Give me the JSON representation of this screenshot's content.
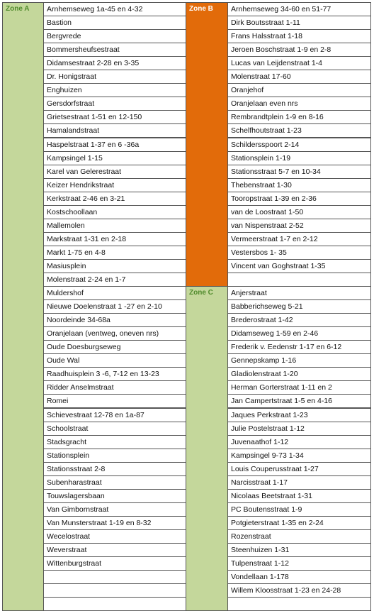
{
  "left": {
    "zone": "Zone A",
    "streets": [
      "Arnhemseweg 1a-45 en 4-32",
      "Bastion",
      "Bergvrede",
      "Bommersheufsestraat",
      "Didamsestraat 2-28 en 3-35",
      "Dr. Honigstraat",
      "Enghuizen",
      "Gersdorfstraat",
      "Grietsestraat 1-51 en 12-150",
      "Hamalandstraat",
      "Haspelstraat 1-37 en 6 -36a",
      "Kampsingel 1-15",
      "Karel van Gelerestraat",
      "Keizer Hendrikstraat",
      "Kerkstraat 2-46 en 3-21",
      "Kostschoollaan",
      "Mallemolen",
      "Markstraat 1-31 en 2-18",
      "Markt 1-75 en 4-8",
      "Masiusplein",
      "Molenstraat 2-24 en 1-7",
      "Muldershof",
      "Nieuwe Doelenstraat 1 -27 en 2-10",
      "Noordeinde 34-68a",
      "Oranjelaan (ventweg, oneven nrs)",
      "Oude Doesburgseweg",
      "Oude Wal",
      "Raadhuisplein 3 -6, 7-12 en 13-23",
      "Ridder Anselmstraat",
      "Romei",
      "Schievestraat 12-78 en 1a-87",
      "Schoolstraat",
      "Stadsgracht",
      "Stationsplein",
      "Stationsstraat 2-8",
      "Subenharastraat",
      "Touwslagersbaan",
      "Van Gimbornstraat",
      "Van Munsterstraat 1-19 en 8-32",
      "Wecelostraat",
      "Weverstraat",
      "Wittenburgstraat"
    ]
  },
  "right": [
    {
      "zone": "Zone B",
      "streets": [
        "Arnhemseweg 34-60 en 51-77",
        "Dirk Boutsstraat 1-11",
        "Frans Halsstraat 1-18",
        "Jeroen Boschstraat 1-9 en 2-8",
        "Lucas van Leijdenstraat 1-4",
        "Molenstraat 17-60",
        "Oranjehof",
        "Oranjelaan even nrs",
        "Rembrandtplein 1-9 en 8-16",
        "Schelfhoutstraat 1-23",
        "Schildersspoort 2-14",
        "Stationsplein 1-19",
        "Stationsstraat 5-7 en 10-34",
        "Thebenstraat 1-30",
        "Tooropstraat 1-39 en 2-36",
        "van de Loostraat 1-50",
        "van Nispenstraat 2-52",
        "Vermeerstraat 1-7 en 2-12",
        "Vestersbos 1- 35",
        "Vincent van Goghstraat 1-35"
      ]
    },
    {
      "zone": "Zone C",
      "streets": [
        "Anjerstraat",
        "Babberichseweg 5-21",
        "Brederostraat 1-42",
        "Didamseweg 1-59 en 2-46",
        "Frederik v. Eedenstr 1-17 en 6-12",
        "Gennepskamp 1-16",
        "Gladiolenstraat 1-20",
        "Herman Gorterstraat 1-11 en 2",
        "Jan Campertstraat 1-5 en 4-16",
        "Jaques Perkstraat 1-23",
        "Julie Postelstraat 1-12",
        "Juvenaathof 1-12",
        "Kampsingel 9-73 1-34",
        "Louis Couperusstraat 1-27",
        "Narcisstraat 1-17",
        "Nicolaas Beetstraat 1-31",
        "PC Boutensstraat 1-9",
        "Potgieterstraat 1-35 en 2-24",
        "Rozenstraat",
        "Steenhuizen 1-31",
        "Tulpenstraat 1-12",
        "Vondellaan 1-178",
        "Willem Kloosstraat 1-23 en 24-28"
      ]
    }
  ]
}
